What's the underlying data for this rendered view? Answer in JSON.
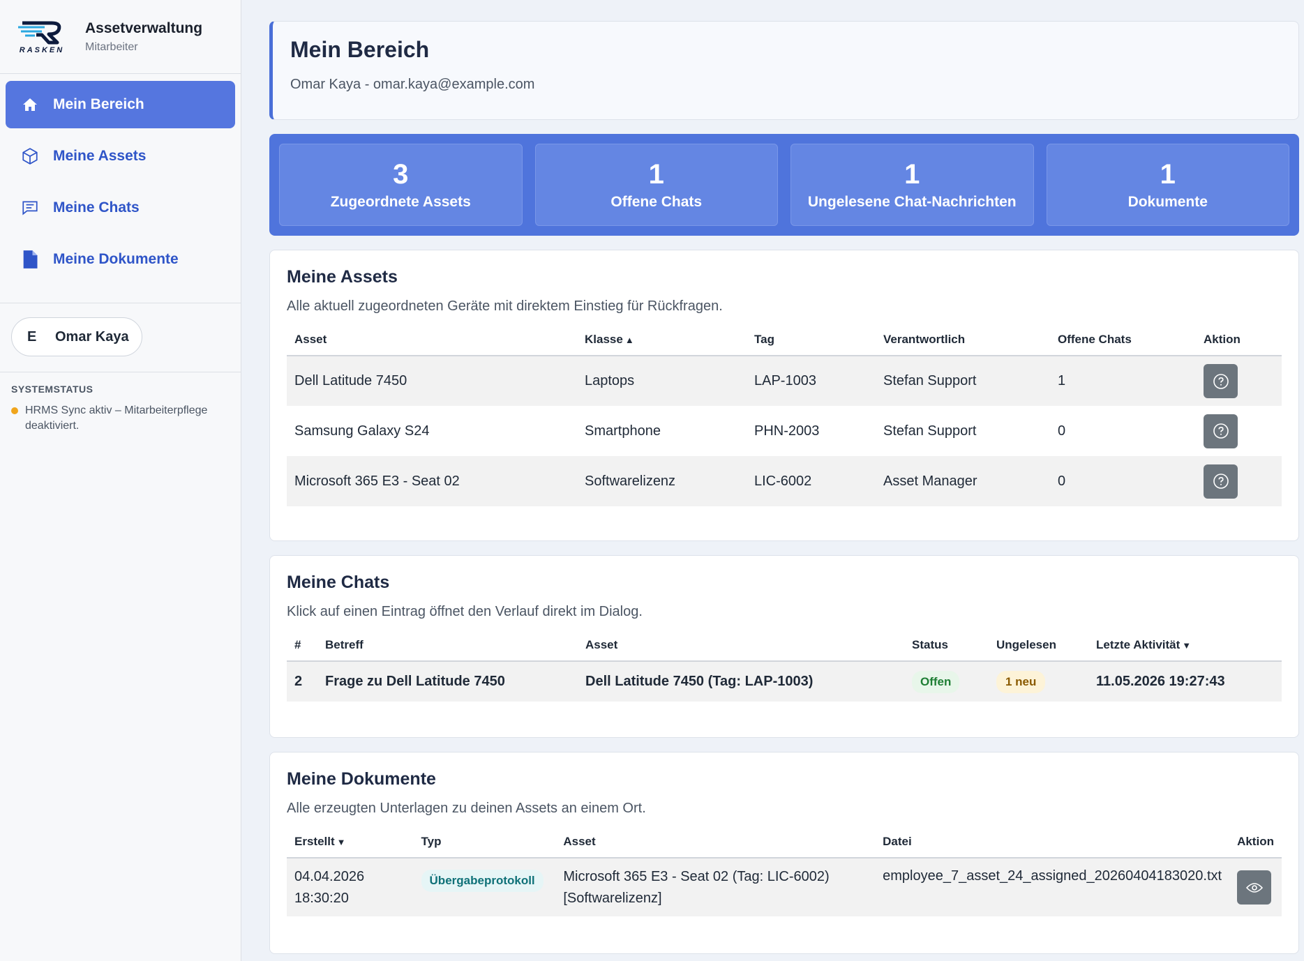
{
  "brand": {
    "title": "Assetverwaltung",
    "role": "Mitarbeiter",
    "logo_text": "RASKEN"
  },
  "nav": [
    {
      "label": "Mein Bereich",
      "icon": "home-icon",
      "active": true
    },
    {
      "label": "Meine Assets",
      "icon": "box-icon",
      "active": false
    },
    {
      "label": "Meine Chats",
      "icon": "chat-icon",
      "active": false
    },
    {
      "label": "Meine Dokumente",
      "icon": "document-icon",
      "active": false
    }
  ],
  "user": {
    "initial": "E",
    "name": "Omar Kaya"
  },
  "system_status": {
    "title": "SYSTEMSTATUS",
    "item": "HRMS Sync aktiv – Mitarbeiterpflege deaktiviert.",
    "dot_color": "#f0a51c"
  },
  "header": {
    "title": "Mein Bereich",
    "subtitle": "Omar Kaya - omar.kaya@example.com"
  },
  "stats": [
    {
      "value": "3",
      "label": "Zugeordnete Assets"
    },
    {
      "value": "1",
      "label": "Offene Chats"
    },
    {
      "value": "1",
      "label": "Ungelesene Chat-Nachrichten"
    },
    {
      "value": "1",
      "label": "Dokumente"
    }
  ],
  "assets": {
    "title": "Meine Assets",
    "desc": "Alle aktuell zugeordneten Geräte mit direktem Einstieg für Rückfragen.",
    "columns": {
      "asset": "Asset",
      "klasse": "Klasse",
      "tag": "Tag",
      "verantwortlich": "Verantwortlich",
      "chats": "Offene Chats",
      "aktion": "Aktion"
    },
    "sort_asc": "▲",
    "rows": [
      {
        "asset": "Dell Latitude 7450",
        "klasse": "Laptops",
        "tag": "LAP-1003",
        "verantwortlich": "Stefan Support",
        "chats": "1"
      },
      {
        "asset": "Samsung Galaxy S24",
        "klasse": "Smartphone",
        "tag": "PHN-2003",
        "verantwortlich": "Stefan Support",
        "chats": "0"
      },
      {
        "asset": "Microsoft 365 E3 - Seat 02",
        "klasse": "Softwarelizenz",
        "tag": "LIC-6002",
        "verantwortlich": "Asset Manager",
        "chats": "0"
      }
    ]
  },
  "chats": {
    "title": "Meine Chats",
    "desc": "Klick auf einen Eintrag öffnet den Verlauf direkt im Dialog.",
    "columns": {
      "id": "#",
      "betreff": "Betreff",
      "asset": "Asset",
      "status": "Status",
      "ungelesen": "Ungelesen",
      "aktivitaet": "Letzte Aktivität"
    },
    "sort_desc": "▼",
    "rows": [
      {
        "id": "2",
        "betreff": "Frage zu Dell Latitude 7450",
        "asset": "Dell Latitude 7450 (Tag: LAP-1003)",
        "status": "Offen",
        "ungelesen": "1 neu",
        "aktivitaet": "11.05.2026 19:27:43"
      }
    ]
  },
  "docs": {
    "title": "Meine Dokumente",
    "desc": "Alle erzeugten Unterlagen zu deinen Assets an einem Ort.",
    "columns": {
      "erstellt": "Erstellt",
      "typ": "Typ",
      "asset": "Asset",
      "datei": "Datei",
      "aktion": "Aktion"
    },
    "sort_desc": "▼",
    "rows": [
      {
        "date": "04.04.2026",
        "time": "18:30:20",
        "typ": "Übergabeprotokoll",
        "asset_line1": "Microsoft 365 E3 - Seat 02 (Tag: LIC-6002)",
        "asset_line2": "[Softwarelizenz]",
        "datei": "employee_7_asset_24_assigned_20260404183020.txt"
      }
    ]
  }
}
